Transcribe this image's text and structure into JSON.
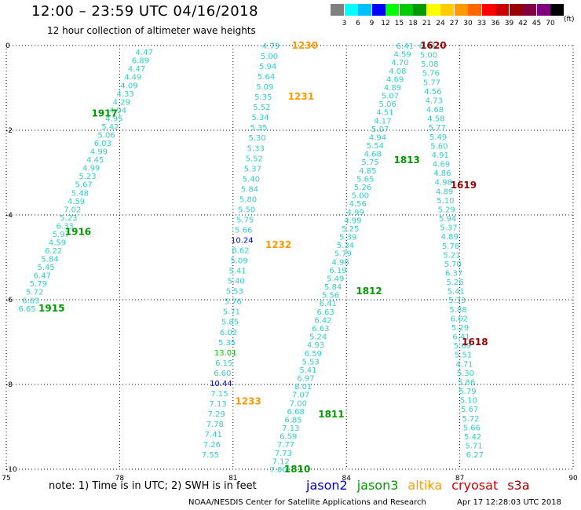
{
  "header": {
    "title": "12:00 – 23:59 UTC 04/16/2018",
    "subtitle": "12 hour collection of altimeter wave heights"
  },
  "legend": {
    "colors": [
      "#808080",
      "#00ffff",
      "#00bfff",
      "#0000ff",
      "#00ff00",
      "#00cc00",
      "#009900",
      "#ffff00",
      "#ffcc00",
      "#ff9900",
      "#ff6600",
      "#ff0000",
      "#cc0000",
      "#990000",
      "#800040",
      "#800080",
      "#000000"
    ],
    "ticks": [
      "3",
      "6",
      "9",
      "12",
      "15",
      "18",
      "21",
      "24",
      "27",
      "30",
      "33",
      "36",
      "39",
      "42",
      "45",
      "70"
    ],
    "unit": "(ft)"
  },
  "footer": {
    "note": "note: 1) Time is in UTC; 2) SWH is in feet",
    "satellites": [
      {
        "name": "jason2",
        "color": "#0000cc"
      },
      {
        "name": "jason3",
        "color": "#009900"
      },
      {
        "name": "altika",
        "color": "#ff9900"
      },
      {
        "name": "cryosat",
        "color": "#cc0000"
      },
      {
        "name": "s3a",
        "color": "#990000"
      }
    ],
    "credit": "NOAA/NESDIS Center for Satellite Applications and Research",
    "timestamp": "Apr 17 12:28:03 UTC 2018"
  },
  "chart_data": {
    "type": "scatter",
    "title": "12:00 – 23:59 UTC 04/16/2018",
    "subtitle": "12 hour collection of altimeter wave heights",
    "xlabel": "",
    "ylabel": "",
    "xlim": [
      75,
      90
    ],
    "ylim": [
      -10,
      0
    ],
    "x_ticks": [
      "75",
      "78",
      "81",
      "84",
      "87",
      "90"
    ],
    "y_ticks": [
      "0",
      "-2",
      "-4",
      "-6",
      "-8",
      "-10"
    ],
    "grid": true,
    "pass_labels": [
      {
        "text": "1230",
        "x": 82.9,
        "y": 0.0,
        "color": "#ff9900"
      },
      {
        "text": "1231",
        "x": 82.8,
        "y": -1.2,
        "color": "#ff9900"
      },
      {
        "text": "1232",
        "x": 82.2,
        "y": -4.7,
        "color": "#ff9900"
      },
      {
        "text": "1233",
        "x": 81.4,
        "y": -8.4,
        "color": "#ff9900"
      },
      {
        "text": "1620",
        "x": 86.3,
        "y": 0.0,
        "color": "#990000"
      },
      {
        "text": "1619",
        "x": 87.1,
        "y": -3.3,
        "color": "#990000"
      },
      {
        "text": "1618",
        "x": 87.4,
        "y": -7.0,
        "color": "#990000"
      },
      {
        "text": "1917",
        "x": 77.6,
        "y": -1.6,
        "color": "#009900"
      },
      {
        "text": "1916",
        "x": 76.9,
        "y": -4.4,
        "color": "#009900"
      },
      {
        "text": "1915",
        "x": 76.2,
        "y": -6.2,
        "color": "#009900"
      },
      {
        "text": "1813",
        "x": 85.6,
        "y": -2.7,
        "color": "#009900"
      },
      {
        "text": "1812",
        "x": 84.6,
        "y": -5.8,
        "color": "#009900"
      },
      {
        "text": "1811",
        "x": 83.6,
        "y": -8.7,
        "color": "#009900"
      },
      {
        "text": "1810",
        "x": 82.7,
        "y": -10.0,
        "color": "#009900"
      }
    ],
    "series": [
      {
        "name": "jason3",
        "track": "1915-1917",
        "x0": 78.65,
        "y0": -0.15,
        "x1": 75.55,
        "y1": -6.2,
        "values": [
          "4.47",
          "6.89",
          "4.47",
          "4.49",
          "4.09",
          "4.33",
          "4.29",
          "4.94",
          "4.95",
          "5.42",
          "5.06",
          "6.03",
          "4.99",
          "4.45",
          "4.99",
          "5.23",
          "5.67",
          "5.48",
          "4.59",
          "7.02",
          "5.23",
          "6.33",
          "5.97",
          "4.59",
          "6.22",
          "5.84",
          "5.45",
          "6.47",
          "5.79",
          "5.72",
          "6.63",
          "6.65"
        ]
      },
      {
        "name": "altika",
        "track": "1230-1233",
        "x0": 82.0,
        "y0": 0.0,
        "x1": 80.4,
        "y1": -9.65,
        "values": [
          "4.79",
          "5.00",
          "5.94",
          "5.64",
          "5.09",
          "5.35",
          "5.52",
          "5.34",
          "5.35",
          "5.30",
          "5.33",
          "5.52",
          "5.37",
          "5.40",
          "5.84",
          "5.80",
          "5.50",
          "5.75",
          "5.66",
          "10.24",
          "8.62",
          "5.09",
          "5.41",
          "5.40",
          "5.53",
          "5.76",
          "5.71",
          "5.85",
          "6.02",
          "5.35",
          "13.01",
          "6.15",
          "6.60",
          "10.44",
          "7.15",
          "7.13",
          "7.29",
          "7.78",
          "7.41",
          "7.26",
          "7.55"
        ],
        "colors": {
          "19": "#0000cc",
          "30": "#00cc00",
          "33": "#0000cc"
        }
      },
      {
        "name": "jason3",
        "track": "1810-1813",
        "x0": 85.55,
        "y0": 0.0,
        "x1": 82.2,
        "y1": -10.0,
        "values": [
          "6.41",
          "4.59",
          "4.70",
          "4.08",
          "4.69",
          "4.89",
          "5.07",
          "5.06",
          "4.51",
          "4.17",
          "5.07",
          "4.94",
          "5.54",
          "4.68",
          "5.75",
          "4.85",
          "5.65",
          "5.26",
          "5.00",
          "4.56",
          "4.99",
          "4.99",
          "5.25",
          "5.39",
          "5.34",
          "5.79",
          "4.98",
          "6.19",
          "5.49",
          "5.84",
          "5.56",
          "6.41",
          "6.63",
          "6.42",
          "6.63",
          "5.24",
          "4.93",
          "6.59",
          "5.53",
          "5.41",
          "6.97",
          "8.01",
          "7.07",
          "7.00",
          "6.68",
          "6.85",
          "7.13",
          "6.59",
          "7.77",
          "7.73",
          "7.12",
          "7.00"
        ]
      },
      {
        "name": "cryosat",
        "track": "1618-1620",
        "x0": 86.15,
        "y0": 0.0,
        "x1": 87.4,
        "y1": -9.65,
        "values": [
          "6.41",
          "5.00",
          "5.08",
          "5.76",
          "5.77",
          "4.56",
          "4.73",
          "4.68",
          "4.58",
          "5.77",
          "5.49",
          "5.60",
          "4.91",
          "4.69",
          "4.86",
          "4.98",
          "4.89",
          "5.10",
          "5.29",
          "5.94",
          "5.37",
          "4.89",
          "5.78",
          "5.21",
          "5.70",
          "6.37",
          "5.26",
          "5.41",
          "5.33",
          "5.88",
          "6.02",
          "5.29",
          "6.41",
          "5.69",
          "5.51",
          "4.71",
          "5.30",
          "5.86",
          "5.79",
          "5.10",
          "5.67",
          "5.72",
          "5.66",
          "5.42",
          "5.71",
          "6.27"
        ]
      }
    ]
  }
}
